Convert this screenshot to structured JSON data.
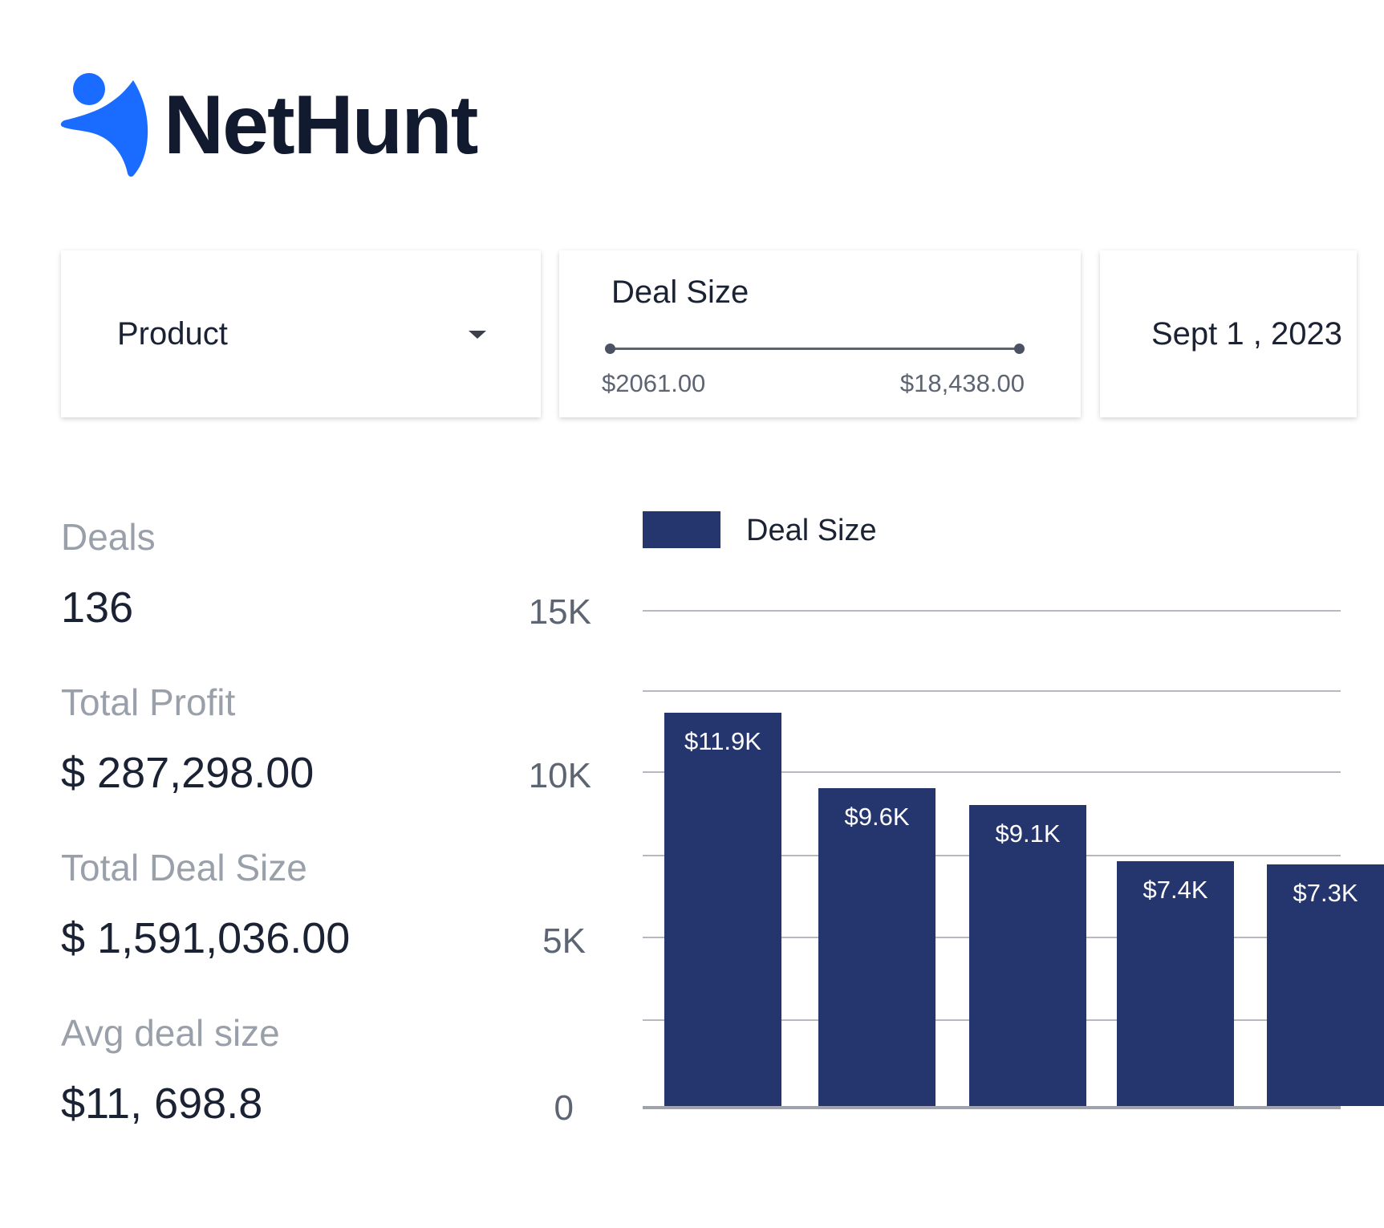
{
  "brand": {
    "name": "NetHunt",
    "color": "#1a6bff"
  },
  "filters": {
    "product": {
      "label": "Product"
    },
    "deal_size": {
      "title": "Deal Size",
      "min": "$2061.00",
      "max": "$18,438.00"
    },
    "date": {
      "label": "Sept 1 , 2023"
    }
  },
  "stats": [
    {
      "label": "Deals",
      "value": "136"
    },
    {
      "label": "Total Profit",
      "value": "$ 287,298.00"
    },
    {
      "label": "Total Deal Size",
      "value": "$ 1,591,036.00"
    },
    {
      "label": "Avg deal size",
      "value": "$11, 698.8"
    }
  ],
  "colors": {
    "bar": "#25356e",
    "grid": "#b6b9c0",
    "label_muted": "#9aa0aa"
  },
  "chart_data": {
    "type": "bar",
    "legend": "Deal Size",
    "yticks": [
      "15K",
      "10K",
      "5K",
      "0"
    ],
    "ylim": [
      0,
      15000
    ],
    "grid": true,
    "legend_position": "top-left",
    "series": [
      {
        "name": "Deal Size",
        "values": [
          11900,
          9600,
          9100,
          7400,
          7300
        ],
        "labels": [
          "$11.9K",
          "$9.6K",
          "$9.1K",
          "$7.4K",
          "$7.3K"
        ]
      }
    ]
  }
}
